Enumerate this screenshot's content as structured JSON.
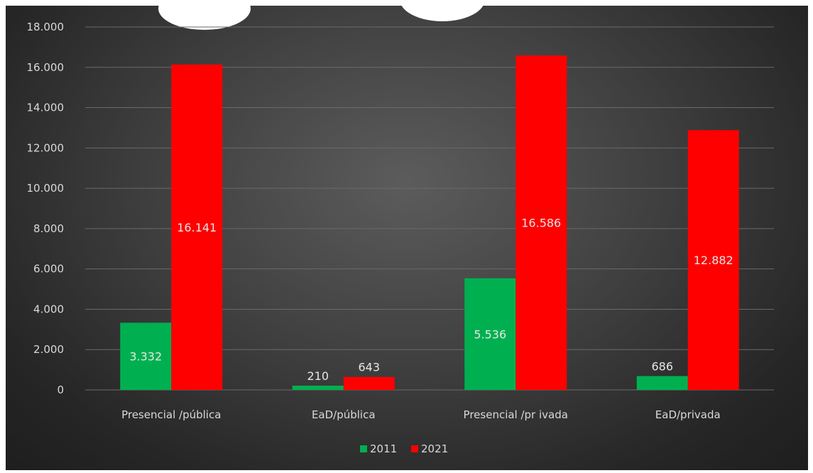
{
  "chart_data": {
    "type": "bar",
    "categories": [
      "Presencial /pública",
      "EaD/pública",
      "Presencial /pr ivada",
      "EaD/privada"
    ],
    "series": [
      {
        "name": "2011",
        "values": [
          3332,
          210,
          5536,
          686
        ],
        "color": "#00b050"
      },
      {
        "name": "2021",
        "values": [
          16141,
          643,
          16586,
          12882
        ],
        "color": "#ff0000"
      }
    ],
    "data_labels": {
      "2011": [
        "3.332",
        "210",
        "5.536",
        "686"
      ],
      "2021": [
        "16.141",
        "643",
        "16.586",
        "12.882"
      ]
    },
    "yticks": [
      "0",
      "2.000",
      "4.000",
      "6.000",
      "8.000",
      "10.000",
      "12.000",
      "14.000",
      "16.000",
      "18.000"
    ],
    "ylim": [
      0,
      18000
    ],
    "grid": true,
    "legend_position": "bottom"
  }
}
